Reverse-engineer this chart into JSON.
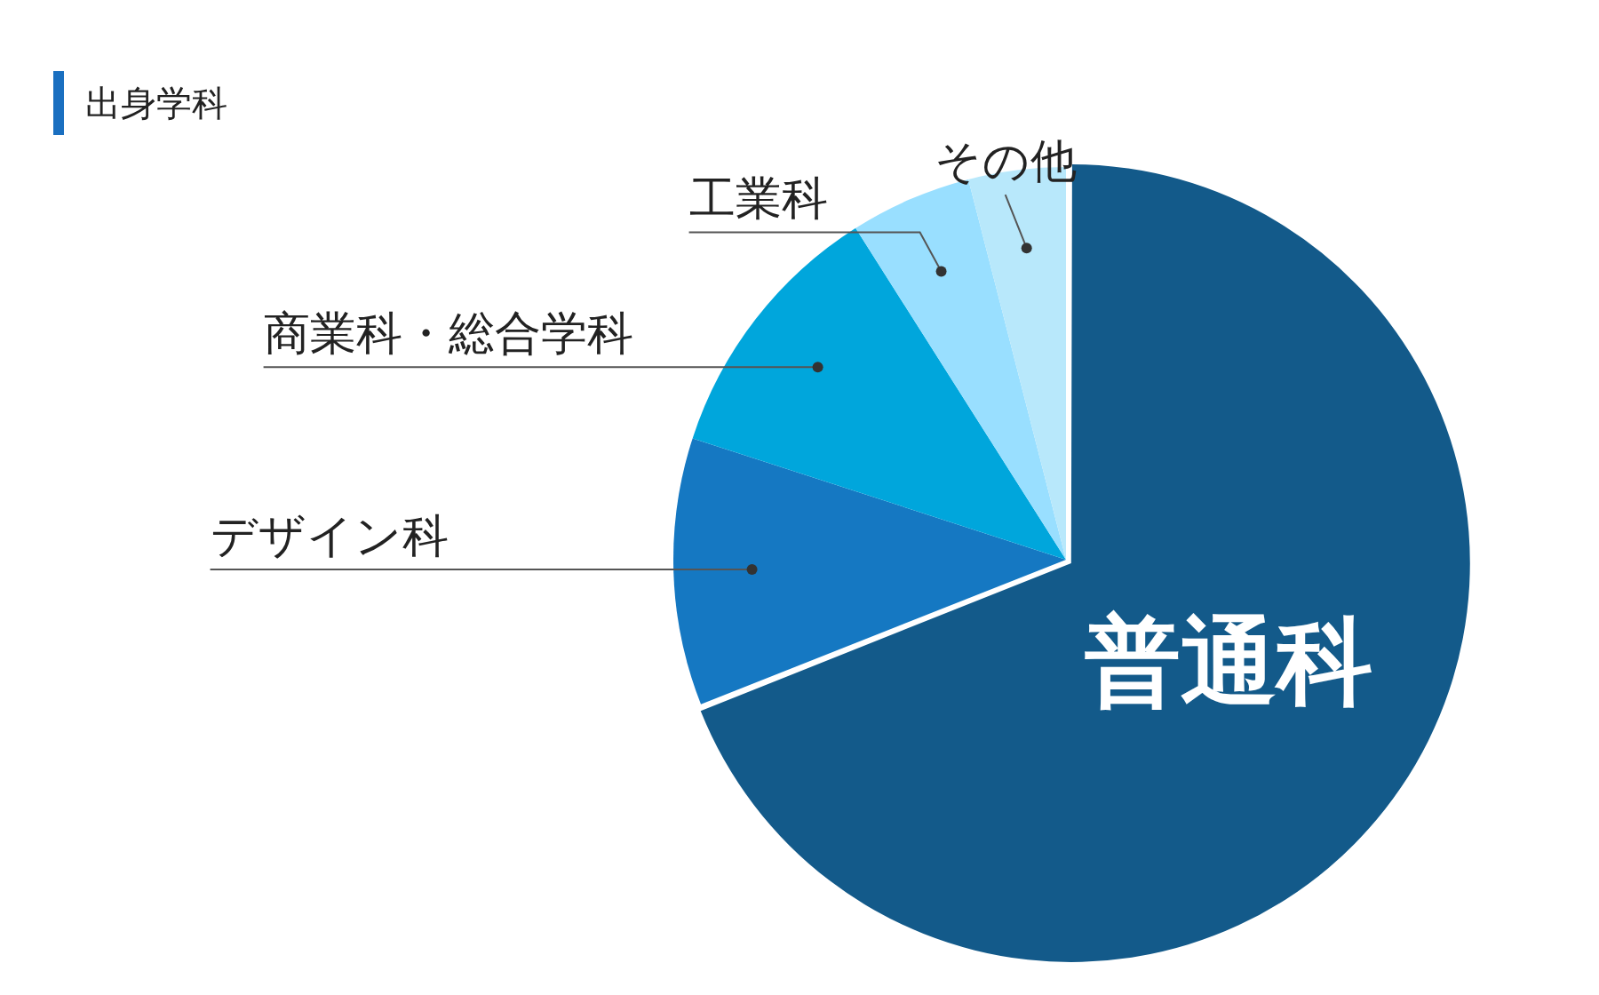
{
  "chart_data": {
    "type": "pie",
    "title": "出身学科",
    "categories": [
      "普通科",
      "デザイン科",
      "商業科・総合学科",
      "工業科",
      "その他"
    ],
    "values": [
      69,
      11,
      11,
      5,
      4
    ],
    "colors": [
      "#135a8a",
      "#1578c2",
      "#00a6dc",
      "#99dfff",
      "#b8e8fb"
    ]
  }
}
